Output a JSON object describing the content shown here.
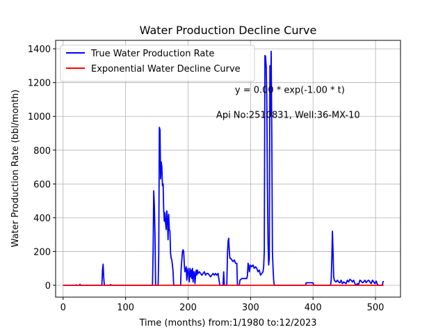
{
  "chart_data": {
    "type": "line",
    "title": "Water Production Decline Curve",
    "xlabel": "Time (months) from:1/1980 to:12/2023",
    "ylabel": "Water Production Rate (bbl/month)",
    "xlim": [
      -12,
      540
    ],
    "ylim": [
      -70,
      1450
    ],
    "xticks": [
      0,
      100,
      200,
      300,
      400,
      500
    ],
    "yticks": [
      0,
      200,
      400,
      600,
      800,
      1000,
      1200,
      1400
    ],
    "grid": true,
    "legend_position": "top-left",
    "annotations": [
      {
        "text": "y = 0.00 * exp(-1.00 * t)",
        "x": 275,
        "y": 1140
      },
      {
        "text": "Api No:2510831, Well:36-MX-10",
        "x": 245,
        "y": 990
      }
    ],
    "series": [
      {
        "name": "True Water Production Rate",
        "color": "#0000ff",
        "points": [
          [
            0,
            0
          ],
          [
            20,
            0
          ],
          [
            21,
            3
          ],
          [
            22,
            0
          ],
          [
            26,
            0
          ],
          [
            27,
            6
          ],
          [
            28,
            0
          ],
          [
            62,
            0
          ],
          [
            63,
            90
          ],
          [
            64,
            125
          ],
          [
            65,
            45
          ],
          [
            66,
            0
          ],
          [
            75,
            0
          ],
          [
            76,
            5
          ],
          [
            77,
            0
          ],
          [
            143,
            0
          ],
          [
            144,
            200
          ],
          [
            145,
            560
          ],
          [
            146,
            470
          ],
          [
            147,
            300
          ],
          [
            148,
            0
          ],
          [
            152,
            0
          ],
          [
            153,
            180
          ],
          [
            154,
            935
          ],
          [
            155,
            920
          ],
          [
            156,
            630
          ],
          [
            157,
            730
          ],
          [
            158,
            700
          ],
          [
            159,
            590
          ],
          [
            160,
            600
          ],
          [
            161,
            450
          ],
          [
            162,
            380
          ],
          [
            163,
            430
          ],
          [
            164,
            370
          ],
          [
            165,
            330
          ],
          [
            166,
            440
          ],
          [
            167,
            390
          ],
          [
            168,
            270
          ],
          [
            169,
            420
          ],
          [
            170,
            330
          ],
          [
            171,
            320
          ],
          [
            172,
            190
          ],
          [
            173,
            160
          ],
          [
            174,
            150
          ],
          [
            175,
            120
          ],
          [
            176,
            80
          ],
          [
            177,
            0
          ],
          [
            188,
            0
          ],
          [
            189,
            100
          ],
          [
            190,
            150
          ],
          [
            191,
            200
          ],
          [
            192,
            210
          ],
          [
            193,
            200
          ],
          [
            194,
            120
          ],
          [
            195,
            80
          ],
          [
            196,
            90
          ],
          [
            197,
            110
          ],
          [
            198,
            30
          ],
          [
            199,
            80
          ],
          [
            200,
            100
          ],
          [
            201,
            60
          ],
          [
            202,
            20
          ],
          [
            203,
            100
          ],
          [
            204,
            50
          ],
          [
            205,
            90
          ],
          [
            206,
            40
          ],
          [
            207,
            100
          ],
          [
            208,
            20
          ],
          [
            209,
            80
          ],
          [
            210,
            80
          ],
          [
            211,
            10
          ],
          [
            212,
            60
          ],
          [
            213,
            90
          ],
          [
            214,
            60
          ],
          [
            215,
            90
          ],
          [
            216,
            70
          ],
          [
            218,
            80
          ],
          [
            220,
            70
          ],
          [
            222,
            60
          ],
          [
            224,
            70
          ],
          [
            226,
            80
          ],
          [
            228,
            60
          ],
          [
            230,
            70
          ],
          [
            232,
            70
          ],
          [
            234,
            60
          ],
          [
            236,
            50
          ],
          [
            238,
            60
          ],
          [
            240,
            70
          ],
          [
            242,
            60
          ],
          [
            244,
            70
          ],
          [
            246,
            60
          ],
          [
            248,
            70
          ],
          [
            250,
            20
          ],
          [
            251,
            0
          ],
          [
            256,
            0
          ],
          [
            257,
            80
          ],
          [
            258,
            0
          ],
          [
            262,
            0
          ],
          [
            263,
            180
          ],
          [
            264,
            260
          ],
          [
            265,
            278
          ],
          [
            266,
            200
          ],
          [
            267,
            160
          ],
          [
            268,
            160
          ],
          [
            270,
            150
          ],
          [
            272,
            140
          ],
          [
            274,
            150
          ],
          [
            276,
            130
          ],
          [
            278,
            130
          ],
          [
            279,
            0
          ],
          [
            282,
            0
          ],
          [
            283,
            30
          ],
          [
            286,
            40
          ],
          [
            290,
            40
          ],
          [
            294,
            40
          ],
          [
            295,
            60
          ],
          [
            296,
            130
          ],
          [
            297,
            120
          ],
          [
            298,
            80
          ],
          [
            300,
            120
          ],
          [
            302,
            110
          ],
          [
            304,
            120
          ],
          [
            306,
            100
          ],
          [
            308,
            110
          ],
          [
            310,
            100
          ],
          [
            312,
            80
          ],
          [
            314,
            90
          ],
          [
            316,
            60
          ],
          [
            318,
            70
          ],
          [
            320,
            80
          ],
          [
            321,
            110
          ],
          [
            322,
            200
          ],
          [
            323,
            1360
          ],
          [
            324,
            1355
          ],
          [
            325,
            1300
          ],
          [
            326,
            1100
          ],
          [
            327,
            600
          ],
          [
            328,
            250
          ],
          [
            329,
            120
          ],
          [
            330,
            160
          ],
          [
            331,
            1300
          ],
          [
            332,
            1000
          ],
          [
            333,
            1385
          ],
          [
            334,
            900
          ],
          [
            335,
            200
          ],
          [
            336,
            100
          ],
          [
            337,
            30
          ],
          [
            338,
            0
          ],
          [
            388,
            0
          ],
          [
            389,
            15
          ],
          [
            395,
            15
          ],
          [
            400,
            15
          ],
          [
            401,
            0
          ],
          [
            428,
            0
          ],
          [
            429,
            30
          ],
          [
            430,
            150
          ],
          [
            431,
            320
          ],
          [
            432,
            200
          ],
          [
            433,
            50
          ],
          [
            434,
            30
          ],
          [
            435,
            25
          ],
          [
            437,
            20
          ],
          [
            439,
            30
          ],
          [
            441,
            20
          ],
          [
            443,
            15
          ],
          [
            445,
            30
          ],
          [
            447,
            10
          ],
          [
            449,
            20
          ],
          [
            451,
            15
          ],
          [
            453,
            10
          ],
          [
            455,
            30
          ],
          [
            457,
            20
          ],
          [
            459,
            35
          ],
          [
            461,
            30
          ],
          [
            463,
            20
          ],
          [
            465,
            30
          ],
          [
            467,
            10
          ],
          [
            469,
            0
          ],
          [
            471,
            10
          ],
          [
            473,
            5
          ],
          [
            475,
            30
          ],
          [
            477,
            25
          ],
          [
            479,
            15
          ],
          [
            481,
            20
          ],
          [
            483,
            30
          ],
          [
            485,
            15
          ],
          [
            487,
            25
          ],
          [
            489,
            30
          ],
          [
            491,
            20
          ],
          [
            493,
            10
          ],
          [
            495,
            30
          ],
          [
            497,
            20
          ],
          [
            499,
            10
          ],
          [
            501,
            25
          ],
          [
            503,
            5
          ],
          [
            505,
            0
          ],
          [
            507,
            0
          ],
          [
            509,
            0
          ],
          [
            511,
            0
          ],
          [
            512,
            20
          ],
          [
            513,
            25
          ]
        ]
      },
      {
        "name": "Exponential Water Decline Curve",
        "color": "#ff0000",
        "points": [
          [
            0,
            0
          ],
          [
            513,
            0
          ]
        ]
      }
    ]
  }
}
